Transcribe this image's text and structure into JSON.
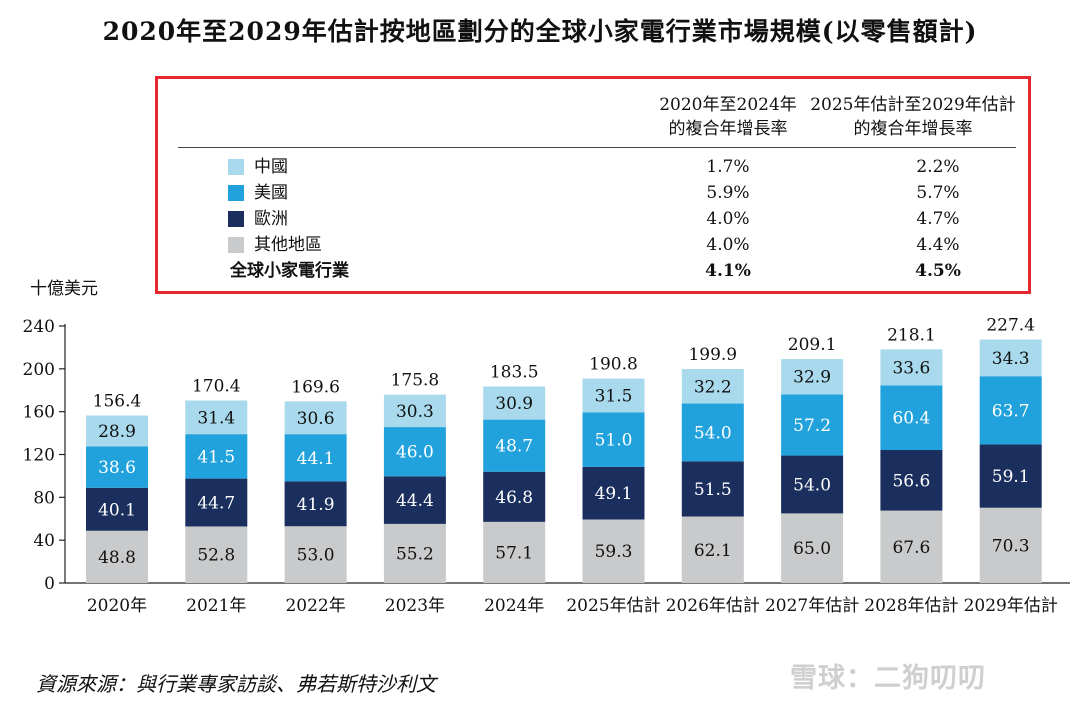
{
  "title": "2020年至2029年估計按地區劃分的全球小家電行業市場規模(以零售額計)",
  "table": {
    "header_1": [
      "2020年至2024年",
      "的複合年增長率"
    ],
    "header_2": [
      "2025年估計至2029年估計",
      "的複合年增長率"
    ],
    "rows": [
      {
        "name": "中國",
        "color": "#a8d9ec",
        "v1": "1.7%",
        "v2": "2.2%"
      },
      {
        "name": "美國",
        "color": "#21a2dc",
        "v1": "5.9%",
        "v2": "5.7%"
      },
      {
        "name": "歐洲",
        "color": "#1b2f5e",
        "v1": "4.0%",
        "v2": "4.7%"
      },
      {
        "name": "其他地區",
        "color": "#c9cacc",
        "v1": "4.0%",
        "v2": "4.4%"
      }
    ],
    "total": {
      "name": "全球小家電行業",
      "v1": "4.1%",
      "v2": "4.5%"
    }
  },
  "source": "資源來源：與行業專家訪談、弗若斯特沙利文",
  "watermark": "雪球：二狗叨叨",
  "chart_data": {
    "type": "bar",
    "stacked": true,
    "ylabel": "十億美元",
    "ylim": [
      0,
      240
    ],
    "yticks": [
      0,
      40,
      80,
      120,
      160,
      200,
      240
    ],
    "categories": [
      "2020年",
      "2021年",
      "2022年",
      "2023年",
      "2024年",
      "2025年估計",
      "2026年估計",
      "2027年估計",
      "2028年估計",
      "2029年估計"
    ],
    "totals": [
      "156.4",
      "170.4",
      "169.6",
      "175.8",
      "183.5",
      "190.8",
      "199.9",
      "209.1",
      "218.1",
      "227.4"
    ],
    "series": [
      {
        "name": "其他地區",
        "color": "#c9cacc",
        "text_color": "#111111",
        "values": [
          48.8,
          52.8,
          53.0,
          55.2,
          57.1,
          59.3,
          62.1,
          65.0,
          67.6,
          70.3
        ]
      },
      {
        "name": "歐洲",
        "color": "#1b2f5e",
        "text_color": "#ffffff",
        "values": [
          40.1,
          44.7,
          41.9,
          44.4,
          46.8,
          49.1,
          51.5,
          54.0,
          56.6,
          59.1
        ]
      },
      {
        "name": "美國",
        "color": "#21a2dc",
        "text_color": "#ffffff",
        "values": [
          38.6,
          41.5,
          44.1,
          46.0,
          48.7,
          51.0,
          54.0,
          57.2,
          60.4,
          63.7
        ]
      },
      {
        "name": "中國",
        "color": "#a8d9ec",
        "text_color": "#111111",
        "values": [
          28.9,
          31.4,
          30.6,
          30.3,
          30.9,
          31.5,
          32.2,
          32.9,
          33.6,
          34.3
        ]
      }
    ]
  }
}
